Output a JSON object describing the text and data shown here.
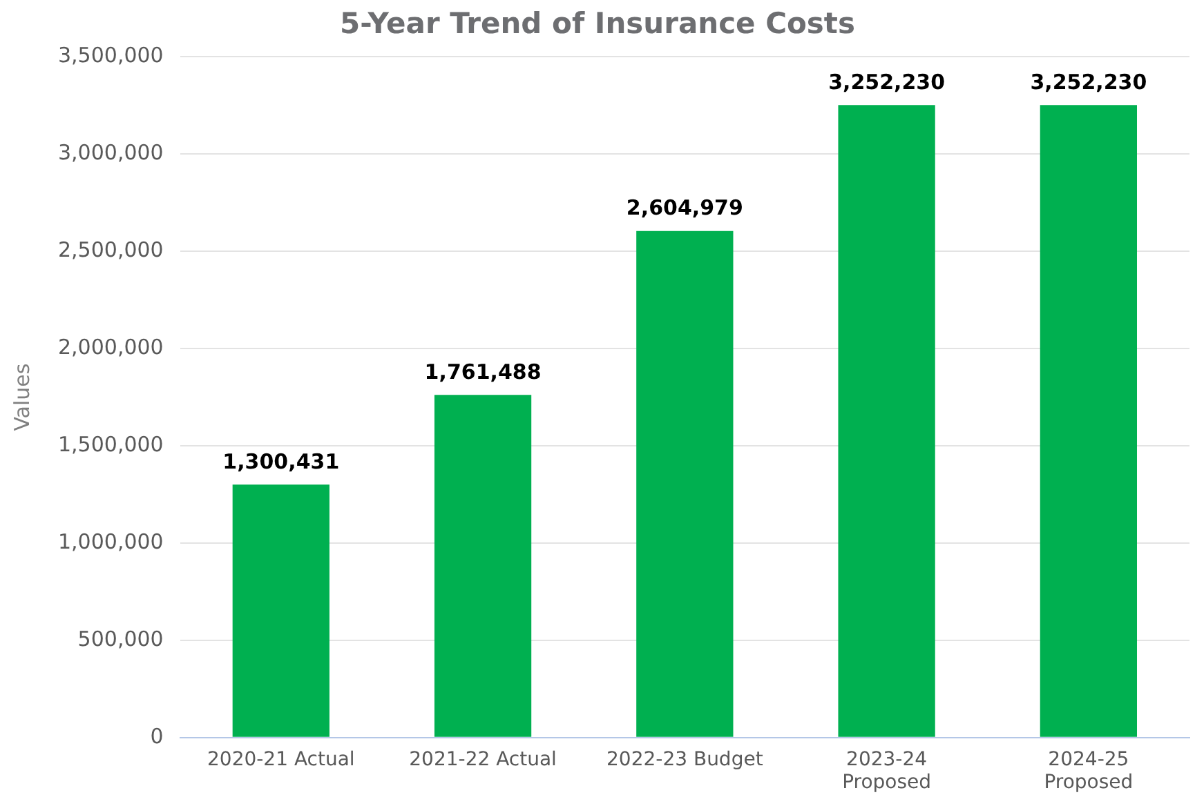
{
  "chart_data": {
    "type": "bar",
    "title": "5-Year Trend of Insurance Costs",
    "ylabel": "Values",
    "categories": [
      "2020-21 Actual",
      "2021-22 Actual",
      "2022-23 Budget",
      "2023-24 Proposed",
      "2024-25 Proposed"
    ],
    "values": [
      1300431,
      1761488,
      2604979,
      3252230,
      3252230
    ],
    "value_labels": [
      "1,300,431",
      "1,761,488",
      "2,604,979",
      "3,252,230",
      "3,252,230"
    ],
    "color": "#00b050",
    "ylim": [
      0,
      3500000
    ],
    "yticks": [
      0,
      {
        "value": 500000,
        "label": "500,000"
      },
      {
        "value": 1000000,
        "label": "1,000,000"
      },
      {
        "value": 1500000,
        "label": "1,500,000"
      },
      {
        "value": 2000000,
        "label": "2,000,000"
      },
      {
        "value": 2500000,
        "label": "2,500,000"
      },
      {
        "value": 3000000,
        "label": "3,000,000"
      },
      {
        "value": 3500000,
        "label": "3,500,000"
      }
    ],
    "grid": "y"
  }
}
